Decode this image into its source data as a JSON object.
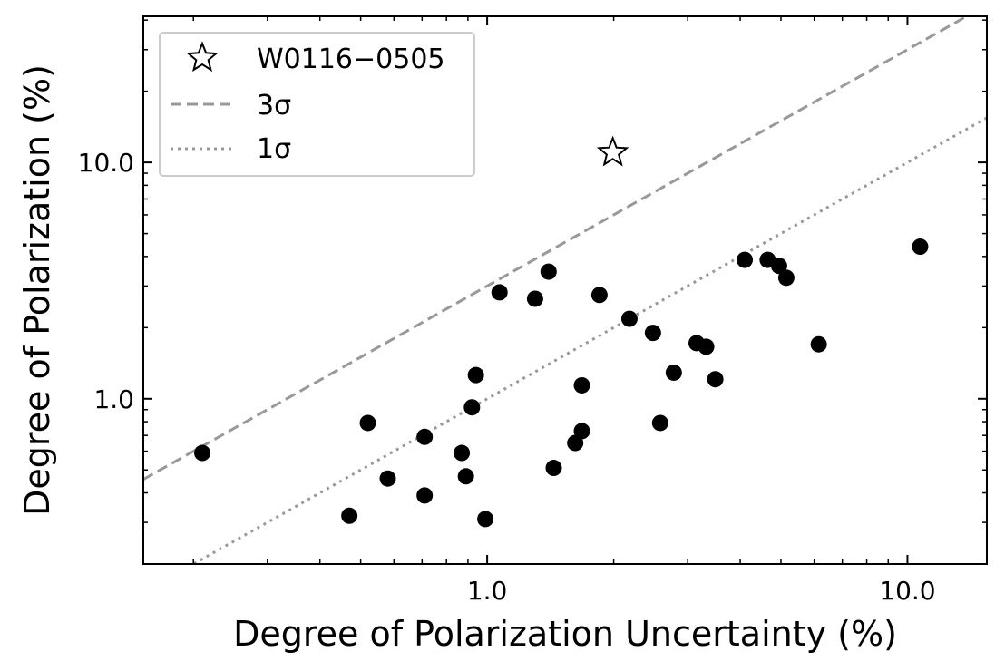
{
  "chart_data": {
    "type": "scatter",
    "xlabel": "Degree of Polarization Uncertainty (%)",
    "ylabel": "Degree of Polarization (%)",
    "x_scale": "log",
    "y_scale": "log",
    "xlim": [
      0.152,
      15.45
    ],
    "ylim": [
      0.2,
      41.5
    ],
    "x_ticks": [
      {
        "value": 1.0,
        "label": "1.0"
      },
      {
        "value": 10.0,
        "label": "10.0"
      }
    ],
    "y_ticks": [
      {
        "value": 1.0,
        "label": "1.0"
      },
      {
        "value": 10.0,
        "label": "10.0"
      }
    ],
    "grid": false,
    "legend": {
      "placement": "top-left",
      "entries": [
        {
          "label": "W0116−0505",
          "marker": "star-outline",
          "color": "#000000"
        },
        {
          "label": "3σ",
          "linestyle": "dashed",
          "color": "#999999"
        },
        {
          "label": "1σ",
          "linestyle": "dotted",
          "color": "#999999"
        }
      ]
    },
    "series": [
      {
        "name": "W0116−0505",
        "marker": "star-outline",
        "color": "#000000",
        "points": [
          {
            "x": 1.99,
            "y": 11.0
          }
        ]
      },
      {
        "marker": "circle",
        "color": "#000000",
        "points": [
          {
            "x": 0.21,
            "y": 0.59
          },
          {
            "x": 0.47,
            "y": 0.32
          },
          {
            "x": 0.52,
            "y": 0.79
          },
          {
            "x": 0.58,
            "y": 0.46
          },
          {
            "x": 0.71,
            "y": 0.69
          },
          {
            "x": 0.71,
            "y": 0.39
          },
          {
            "x": 0.87,
            "y": 0.59
          },
          {
            "x": 0.89,
            "y": 0.47
          },
          {
            "x": 0.92,
            "y": 0.92
          },
          {
            "x": 0.94,
            "y": 1.26
          },
          {
            "x": 0.99,
            "y": 0.31
          },
          {
            "x": 1.07,
            "y": 2.82
          },
          {
            "x": 1.3,
            "y": 2.65
          },
          {
            "x": 1.4,
            "y": 3.45
          },
          {
            "x": 1.44,
            "y": 0.51
          },
          {
            "x": 1.62,
            "y": 0.65
          },
          {
            "x": 1.68,
            "y": 1.14
          },
          {
            "x": 1.68,
            "y": 0.73
          },
          {
            "x": 1.85,
            "y": 2.75
          },
          {
            "x": 2.18,
            "y": 2.18
          },
          {
            "x": 2.48,
            "y": 1.9
          },
          {
            "x": 2.58,
            "y": 0.79
          },
          {
            "x": 2.78,
            "y": 1.29
          },
          {
            "x": 3.15,
            "y": 1.72
          },
          {
            "x": 3.32,
            "y": 1.66
          },
          {
            "x": 3.49,
            "y": 1.21
          },
          {
            "x": 4.1,
            "y": 3.87
          },
          {
            "x": 4.65,
            "y": 3.87
          },
          {
            "x": 4.95,
            "y": 3.65
          },
          {
            "x": 5.15,
            "y": 3.25
          },
          {
            "x": 6.15,
            "y": 1.7
          },
          {
            "x": 10.72,
            "y": 4.4
          }
        ]
      }
    ],
    "lines": [
      {
        "name": "3σ",
        "slope": 3,
        "linestyle": "dashed",
        "color": "#999999"
      },
      {
        "name": "1σ",
        "slope": 1,
        "linestyle": "dotted",
        "color": "#999999"
      }
    ]
  }
}
